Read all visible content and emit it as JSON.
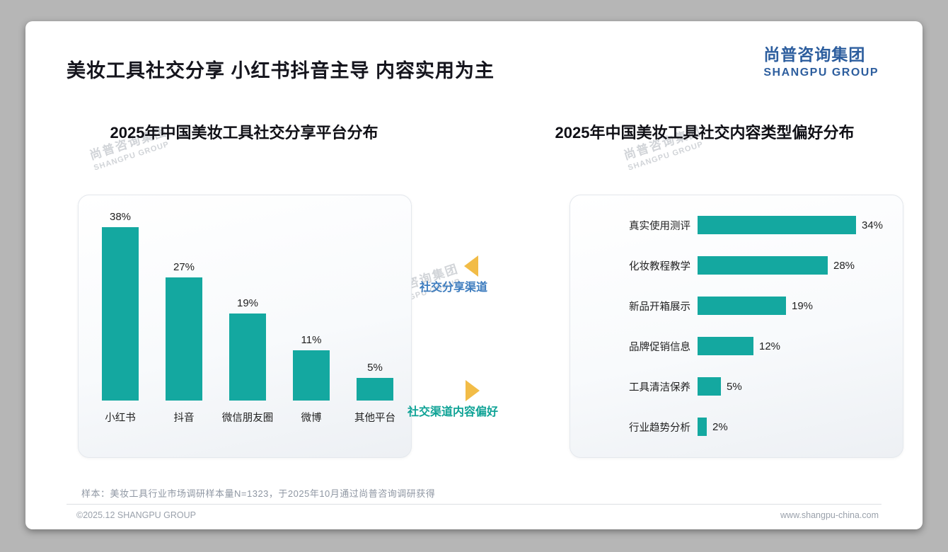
{
  "header": {
    "title": "美妆工具社交分享 小红书抖音主导 内容实用为主",
    "logo_cn": "尚普咨询集团",
    "logo_en": "SHANGPU GROUP"
  },
  "watermark": {
    "cn": "尚普咨询集团",
    "en": "SHANGPU GROUP"
  },
  "annotations": {
    "share_channel_label": "社交分享渠道",
    "content_preference_label": "社交渠道内容偏好"
  },
  "colors": {
    "bar_teal": "#14a8a0",
    "arrow_yellow": "#f2bc47",
    "annotation_blue": "#3d7cbe",
    "annotation_teal": "#0fa396",
    "logo_navy": "#2d5e9e"
  },
  "chart_data": [
    {
      "type": "bar",
      "orientation": "vertical",
      "title": "2025年中国美妆工具社交分享平台分布",
      "categories": [
        "小红书",
        "抖音",
        "微信朋友圈",
        "微博",
        "其他平台"
      ],
      "values": [
        38,
        27,
        19,
        11,
        5
      ],
      "unit": "%",
      "value_labels": [
        "38%",
        "27%",
        "19%",
        "11%",
        "5%"
      ],
      "ylim": [
        0,
        40
      ],
      "grid": false,
      "legend": false,
      "bar_color": "#14a8a0"
    },
    {
      "type": "bar",
      "orientation": "horizontal",
      "title": "2025年中国美妆工具社交内容类型偏好分布",
      "categories": [
        "真实使用测评",
        "化妆教程教学",
        "新品开箱展示",
        "品牌促销信息",
        "工具清洁保养",
        "行业趋势分析"
      ],
      "values": [
        34,
        28,
        19,
        12,
        5,
        2
      ],
      "unit": "%",
      "value_labels": [
        "34%",
        "28%",
        "19%",
        "12%",
        "5%",
        "2%"
      ],
      "xlim": [
        0,
        40
      ],
      "grid": false,
      "legend": false,
      "bar_color": "#14a8a0"
    }
  ],
  "footnote": "样本：美妆工具行业市场调研样本量N=1323，于2025年10月通过尚普咨询调研获得",
  "footer": {
    "left": "©2025.12 SHANGPU GROUP",
    "right": "www.shangpu-china.com"
  }
}
